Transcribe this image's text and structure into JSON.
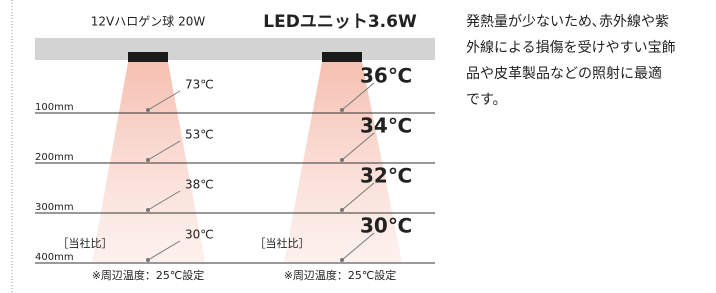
{
  "columns": [
    {
      "title": "12Vハロゲン球 20W",
      "temperatures": [
        "73℃",
        "53℃",
        "38℃",
        "30℃"
      ],
      "note": "［当社比］",
      "ambient": "※周辺温度：25℃設定"
    },
    {
      "title": "LEDユニット3.6W",
      "temperatures": [
        "36℃",
        "34℃",
        "32℃",
        "30℃"
      ],
      "note": "［当社比］",
      "ambient": "※周辺温度：25℃設定"
    }
  ],
  "distances": [
    "100mm",
    "200mm",
    "300mm",
    "400mm"
  ],
  "description": [
    "発熱量が少ないため､赤外線や紫",
    "外線による損傷を受けやすい宝飾",
    "品や皮革製品などの照射に最適",
    "です。"
  ]
}
